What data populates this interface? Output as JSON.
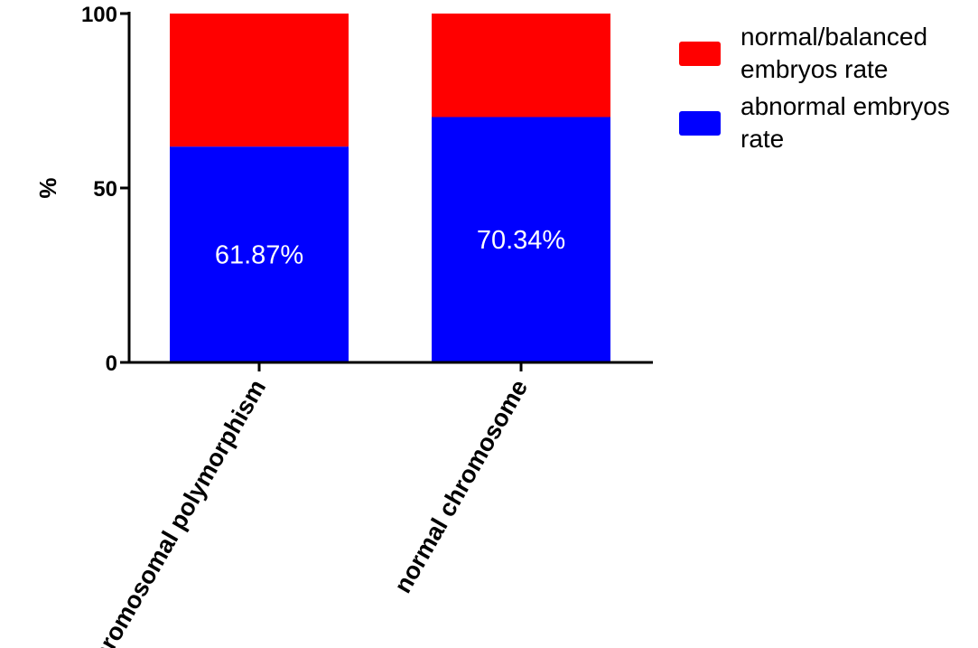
{
  "chart_data": {
    "type": "bar",
    "stacked": true,
    "categories": [
      "chromosomal polymorphism",
      "normal chromosome"
    ],
    "series": [
      {
        "name": "abnormal embryos rate",
        "legend_lines": [
          "abnormal embryos",
          "rate"
        ],
        "color": "#0000ff",
        "values": [
          61.87,
          70.34
        ],
        "data_labels": [
          "61.87%",
          "70.34%"
        ]
      },
      {
        "name": "normal/balanced embryos rate",
        "legend_lines": [
          "normal/balanced",
          "embryos rate"
        ],
        "color": "#ff0000",
        "values": [
          38.13,
          29.66
        ]
      }
    ],
    "legend_order": [
      1,
      0
    ],
    "legend_position": "top-right",
    "ylabel": "%",
    "xlabel": "",
    "title": "",
    "ylim": [
      0,
      100
    ],
    "yticks": [
      0,
      50,
      100
    ],
    "grid": false
  }
}
